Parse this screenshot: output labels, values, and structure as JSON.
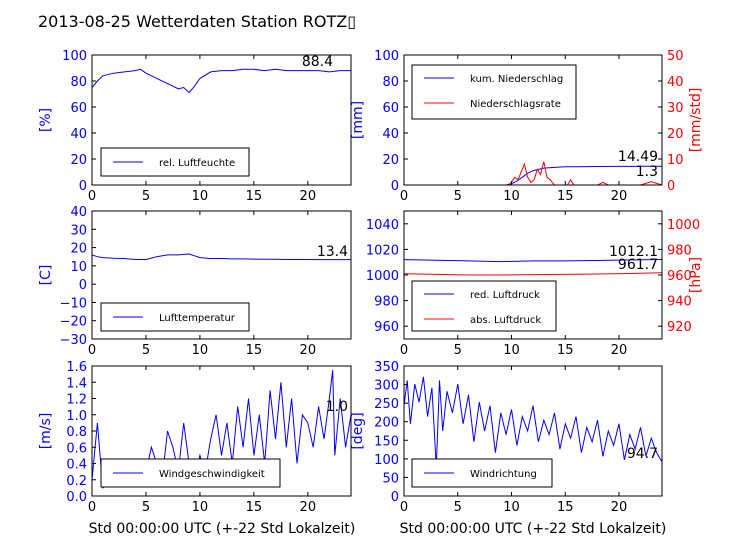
{
  "title": "2013-08-25 Wetterdaten Station ROTZ▯",
  "xlabel": "Std 00:00:00 UTC (+-22 Std Lokalzeit)",
  "colors": {
    "primary": "#0000ff",
    "secondary": "#ff0000",
    "axes": "#000000"
  },
  "chart_data": [
    {
      "type": "line",
      "ylabel": "[%]",
      "xlim": [
        0,
        24
      ],
      "ylim": [
        0,
        100
      ],
      "xticks": [
        "0",
        "5",
        "10",
        "15",
        "20"
      ],
      "yticks": [
        "0",
        "20",
        "40",
        "60",
        "80",
        "100"
      ],
      "legend": {
        "entries": [
          "rel. Luftfeuchte"
        ],
        "position": "lower-left"
      },
      "annotations": [
        {
          "text": "88.4"
        }
      ],
      "series": [
        {
          "name": "rel. Luftfeuchte",
          "color": "#0000ff",
          "axis": "left",
          "x": [
            0,
            0.5,
            1,
            2,
            3,
            4,
            4.5,
            5,
            6,
            7,
            8,
            8.5,
            9,
            9.5,
            10,
            11,
            12,
            13,
            14,
            15,
            16,
            17,
            18,
            19,
            20,
            21,
            22,
            23,
            24
          ],
          "y": [
            75,
            80,
            84,
            86,
            87,
            88,
            89,
            86,
            82,
            78,
            74,
            75,
            71,
            76,
            82,
            87,
            88,
            88,
            89,
            89,
            88,
            89,
            88,
            88,
            88,
            88,
            87,
            88,
            88
          ]
        }
      ]
    },
    {
      "type": "line",
      "ylabel": "[mm]",
      "ylabel_right": "[mm/std]",
      "xlim": [
        0,
        24
      ],
      "ylim": [
        0,
        100
      ],
      "ylim_right": [
        0,
        50
      ],
      "xticks": [
        "0",
        "5",
        "10",
        "15",
        "20"
      ],
      "yticks": [
        "0",
        "20",
        "40",
        "60",
        "80",
        "100"
      ],
      "yticks_right": [
        "0",
        "10",
        "20",
        "30",
        "40",
        "50"
      ],
      "legend": {
        "entries": [
          "kum. Niederschlag",
          "Niederschlagsrate"
        ],
        "position": "upper-left"
      },
      "annotations": [
        {
          "text": "14.49"
        },
        {
          "text": "1.3"
        }
      ],
      "series": [
        {
          "name": "kum. Niederschlag",
          "color": "#0000ff",
          "axis": "left",
          "x": [
            0,
            9.5,
            10,
            10.5,
            11,
            11.5,
            12,
            12.5,
            13,
            14,
            15,
            16,
            18,
            20,
            22,
            23,
            24
          ],
          "y": [
            0,
            0,
            1,
            3,
            6,
            9,
            11,
            12,
            13,
            13.5,
            14,
            14,
            14.2,
            14.3,
            14.4,
            14.5,
            14.5
          ]
        },
        {
          "name": "Niederschlagsrate",
          "color": "#ff0000",
          "axis": "right",
          "x": [
            0,
            9.7,
            10,
            10.3,
            10.6,
            10.9,
            11.2,
            11.5,
            11.8,
            12.1,
            12.4,
            12.7,
            13,
            13.3,
            13.6,
            14,
            15.2,
            15.5,
            15.8,
            16.1,
            17,
            18,
            18.5,
            19,
            20,
            21,
            22,
            23,
            24
          ],
          "y": [
            0,
            0,
            1,
            3,
            2,
            5,
            8,
            3,
            1,
            2,
            6,
            4,
            9,
            3,
            2,
            0,
            0,
            2,
            0,
            0,
            0,
            0,
            1,
            0,
            0,
            0,
            0,
            1.3,
            0
          ]
        }
      ]
    },
    {
      "type": "line",
      "ylabel": "[C]",
      "xlim": [
        0,
        24
      ],
      "ylim": [
        -30,
        40
      ],
      "xticks": [
        "0",
        "5",
        "10",
        "15",
        "20"
      ],
      "yticks": [
        "−30",
        "−20",
        "−10",
        "0",
        "10",
        "20",
        "30",
        "40"
      ],
      "legend": {
        "entries": [
          "Lufttemperatur"
        ],
        "position": "lower-left"
      },
      "annotations": [
        {
          "text": "13.4"
        }
      ],
      "series": [
        {
          "name": "Lufttemperatur",
          "color": "#0000ff",
          "axis": "left",
          "x": [
            0,
            0.5,
            1,
            2,
            3,
            4,
            5,
            6,
            7,
            8,
            9,
            9.5,
            10,
            11,
            12,
            13,
            14,
            15,
            16,
            17,
            18,
            19,
            20,
            21,
            22,
            23,
            24
          ],
          "y": [
            16,
            15,
            14.5,
            14.2,
            14,
            13.5,
            13.5,
            15,
            16,
            16,
            16.5,
            15.5,
            14.5,
            14,
            14,
            13.8,
            13.8,
            13.7,
            13.6,
            13.6,
            13.5,
            13.5,
            13.5,
            13.4,
            13.4,
            13.4,
            13.4
          ]
        }
      ]
    },
    {
      "type": "line",
      "ylabel_right": "[hPa]",
      "xlim": [
        0,
        24
      ],
      "ylim": [
        950,
        1050
      ],
      "ylim_right": [
        910,
        1010
      ],
      "xticks": [
        "0",
        "5",
        "10",
        "15",
        "20"
      ],
      "yticks": [
        "960",
        "980",
        "1000",
        "1020",
        "1040"
      ],
      "yticks_right": [
        "920",
        "940",
        "960",
        "980",
        "1000"
      ],
      "legend": {
        "entries": [
          "red. Luftdruck",
          "abs. Luftdruck"
        ],
        "position": "lower-left"
      },
      "annotations": [
        {
          "text": "1012.1"
        },
        {
          "text": "961.7"
        }
      ],
      "series": [
        {
          "name": "red. Luftdruck",
          "color": "#0000ff",
          "axis": "left",
          "x": [
            0,
            3,
            6,
            9,
            12,
            15,
            18,
            21,
            24
          ],
          "y": [
            1012,
            1011.5,
            1011,
            1010.5,
            1011,
            1011,
            1011.3,
            1011.8,
            1012.1
          ]
        },
        {
          "name": "abs. Luftdruck",
          "color": "#ff0000",
          "axis": "right",
          "x": [
            0,
            3,
            6,
            9,
            12,
            15,
            18,
            21,
            24
          ],
          "y": [
            961,
            960.5,
            960,
            960,
            960.3,
            960.5,
            960.8,
            961.2,
            961.7
          ]
        }
      ]
    },
    {
      "type": "line",
      "ylabel": "[m/s]",
      "xlim": [
        0,
        24
      ],
      "ylim": [
        0,
        1.6
      ],
      "xticks": [
        "0",
        "5",
        "10",
        "15",
        "20"
      ],
      "yticks": [
        "0.0",
        "0.2",
        "0.4",
        "0.6",
        "0.8",
        "1.0",
        "1.2",
        "1.4",
        "1.6"
      ],
      "legend": {
        "entries": [
          "Windgeschwindigkeit"
        ],
        "position": "lower-left"
      },
      "annotations": [
        {
          "text": "1.0"
        }
      ],
      "series": [
        {
          "name": "Windgeschwindigkeit",
          "color": "#0000ff",
          "axis": "left",
          "x": [
            0,
            0.5,
            1,
            1.5,
            2,
            2.5,
            3,
            3.5,
            4,
            4.5,
            5,
            5.5,
            6,
            6.5,
            7,
            7.5,
            8,
            8.5,
            9,
            9.5,
            10,
            10.5,
            11,
            11.5,
            12,
            12.5,
            13,
            13.5,
            14,
            14.5,
            15,
            15.5,
            16,
            16.5,
            17,
            17.5,
            18,
            18.5,
            19,
            19.5,
            20,
            20.5,
            21,
            21.5,
            22,
            22.3,
            22.5,
            23,
            23.5,
            24
          ],
          "y": [
            0.2,
            0.9,
            0.1,
            0.15,
            0.2,
            0.3,
            0.25,
            0.35,
            0.3,
            0.2,
            0.3,
            0.6,
            0.4,
            0.2,
            0.8,
            0.6,
            0.3,
            0.9,
            0.4,
            0.2,
            0.5,
            0.3,
            0.7,
            1.0,
            0.5,
            0.9,
            0.4,
            1.1,
            0.6,
            1.2,
            0.5,
            1.0,
            0.4,
            1.3,
            0.7,
            1.4,
            0.6,
            1.2,
            0.4,
            1.0,
            0.9,
            0.6,
            1.1,
            0.7,
            1.2,
            1.55,
            0.5,
            1.2,
            0.6,
            1.0
          ]
        }
      ]
    },
    {
      "type": "line",
      "ylabel": "[deg]",
      "xlim": [
        0,
        24
      ],
      "ylim": [
        0,
        360
      ],
      "xticks": [
        "0",
        "5",
        "10",
        "15",
        "20"
      ],
      "yticks": [
        "0",
        "50",
        "100",
        "150",
        "200",
        "250",
        "300",
        "350"
      ],
      "legend": {
        "entries": [
          "Windrichtung"
        ],
        "position": "lower-left"
      },
      "annotations": [
        {
          "text": "94.7"
        }
      ],
      "series": [
        {
          "name": "Windrichtung",
          "color": "#0000ff",
          "axis": "left",
          "x": [
            0,
            0.3,
            0.6,
            1,
            1.4,
            1.8,
            2.2,
            2.6,
            3,
            3.3,
            3.6,
            4,
            4.5,
            5,
            5.5,
            6,
            6.5,
            7,
            7.5,
            8,
            8.5,
            9,
            9.5,
            10,
            10.5,
            11,
            11.5,
            12,
            12.5,
            13,
            13.5,
            14,
            14.5,
            15,
            15.5,
            16,
            16.5,
            17,
            17.5,
            18,
            18.5,
            19,
            19.5,
            20,
            20.5,
            21,
            21.5,
            22,
            22.5,
            23,
            23.5,
            24
          ],
          "y": [
            250,
            320,
            200,
            310,
            260,
            330,
            220,
            300,
            80,
            320,
            180,
            290,
            230,
            310,
            200,
            280,
            150,
            260,
            180,
            250,
            120,
            230,
            170,
            240,
            140,
            220,
            180,
            250,
            150,
            210,
            170,
            230,
            130,
            200,
            160,
            220,
            120,
            190,
            150,
            210,
            110,
            180,
            140,
            200,
            100,
            170,
            130,
            190,
            110,
            160,
            120,
            95
          ]
        }
      ]
    }
  ]
}
